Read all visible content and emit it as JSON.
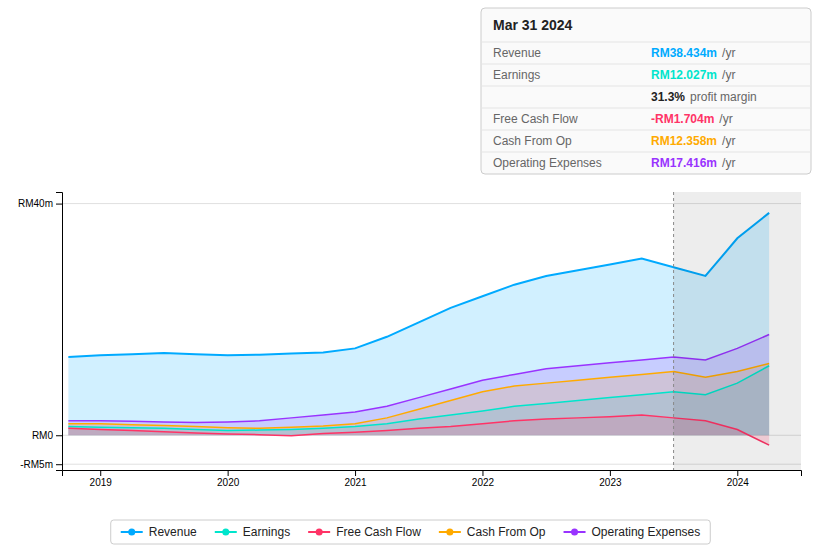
{
  "chart_data": {
    "type": "area",
    "x": [
      2018.75,
      2019.0,
      2019.25,
      2019.5,
      2019.75,
      2020.0,
      2020.25,
      2020.5,
      2020.75,
      2021.0,
      2021.25,
      2021.5,
      2021.75,
      2022.0,
      2022.25,
      2022.5,
      2022.75,
      2023.0,
      2023.25,
      2023.5,
      2023.75,
      2024.0,
      2024.25
    ],
    "xlim": [
      2018.7,
      2024.5
    ],
    "xticks": [
      2019,
      2020,
      2021,
      2022,
      2023,
      2024
    ],
    "ylim": [
      -6,
      42
    ],
    "yticks": [
      {
        "value": 40,
        "label": "RM40m"
      },
      {
        "value": 0,
        "label": "RM0"
      },
      {
        "value": -5,
        "label": "-RM5m"
      }
    ],
    "grid": "y",
    "legend": "bottom",
    "highlight_x": 2023.5,
    "series": [
      {
        "name": "Revenue",
        "color": "#00aaff",
        "values": [
          13.5,
          13.8,
          14.0,
          14.2,
          14.0,
          13.8,
          13.9,
          14.1,
          14.3,
          15.0,
          17.0,
          19.5,
          22.0,
          24.0,
          26.0,
          27.5,
          28.5,
          29.5,
          30.5,
          29.0,
          27.5,
          34.0,
          38.4
        ]
      },
      {
        "name": "Earnings",
        "color": "#00e5cc",
        "values": [
          1.5,
          1.4,
          1.3,
          1.2,
          1.0,
          0.8,
          0.9,
          1.0,
          1.2,
          1.5,
          2.0,
          2.8,
          3.5,
          4.2,
          5.0,
          5.5,
          6.0,
          6.5,
          7.0,
          7.5,
          7.0,
          9.0,
          12.0
        ]
      },
      {
        "name": "Free Cash Flow",
        "color": "#ff3366",
        "values": [
          1.2,
          1.0,
          0.8,
          0.6,
          0.4,
          0.2,
          0.1,
          -0.1,
          0.3,
          0.5,
          0.8,
          1.2,
          1.5,
          2.0,
          2.5,
          2.8,
          3.0,
          3.2,
          3.5,
          3.0,
          2.5,
          1.0,
          -1.7
        ]
      },
      {
        "name": "Cash From Op",
        "color": "#ffaa00",
        "values": [
          2.0,
          2.0,
          1.8,
          1.7,
          1.5,
          1.3,
          1.2,
          1.4,
          1.6,
          2.0,
          3.0,
          4.5,
          6.0,
          7.5,
          8.5,
          9.0,
          9.5,
          10.0,
          10.5,
          11.0,
          10.0,
          11.0,
          12.4
        ]
      },
      {
        "name": "Operating Expenses",
        "color": "#9933ff",
        "values": [
          2.5,
          2.5,
          2.4,
          2.3,
          2.2,
          2.3,
          2.5,
          3.0,
          3.5,
          4.0,
          5.0,
          6.5,
          8.0,
          9.5,
          10.5,
          11.5,
          12.0,
          12.5,
          13.0,
          13.5,
          13.0,
          15.0,
          17.4
        ]
      }
    ],
    "annotations": [
      {
        "heading": "Mar 31 2024",
        "rows": [
          {
            "label": "Revenue",
            "text": "RM38.434m",
            "suffix": "/yr",
            "color": "#00aaff"
          },
          {
            "label": "Earnings",
            "text": "RM12.027m",
            "suffix": "/yr",
            "color": "#00e5cc"
          },
          {
            "text": "31.3%",
            "suffix": "profit margin"
          },
          {
            "label": "Free Cash Flow",
            "text": "-RM1.704m",
            "suffix": "/yr",
            "color": "#ff3366"
          },
          {
            "label": "Cash From Op",
            "text": "RM12.358m",
            "suffix": "/yr",
            "color": "#ffaa00"
          },
          {
            "label": "Operating Expenses",
            "text": "RM17.416m",
            "suffix": "/yr",
            "color": "#9933ff"
          }
        ]
      }
    ]
  }
}
